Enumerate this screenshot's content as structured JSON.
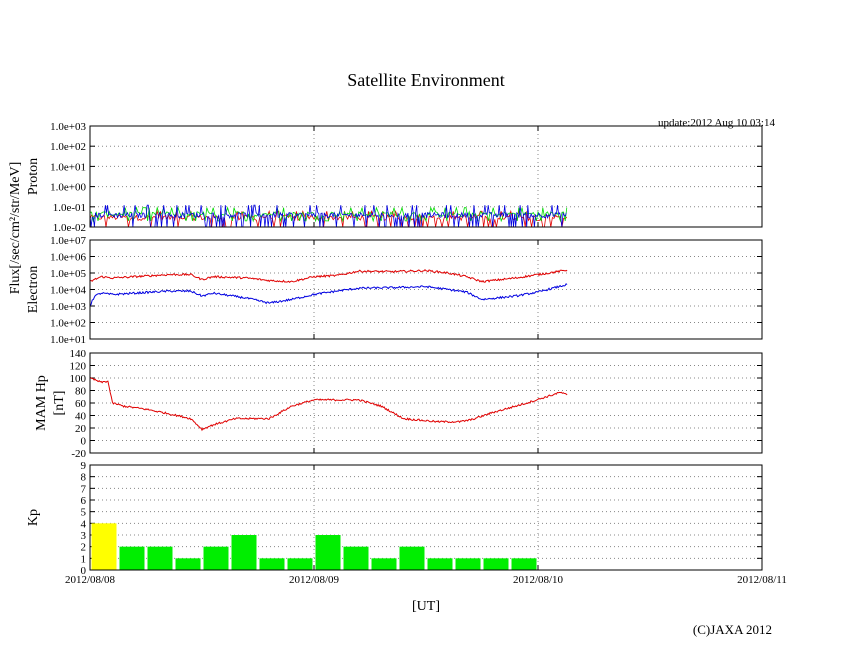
{
  "title": "Satellite Environment",
  "update_label": "update:2012 Aug 10 03:14",
  "copyright": "(C)JAXA 2012",
  "x_label": "[UT]",
  "x_ticks": [
    "2012/08/08",
    "2012/08/09",
    "2012/08/10",
    "2012/08/11"
  ],
  "y_shared_label": "Flux[/sec/cm²/str/MeV]",
  "colors": {
    "red": "#e00000",
    "blue": "#0000e0",
    "green": "#00dd00",
    "yellow": "#ffff00",
    "bar_green": "#00ee00"
  },
  "chart_data": [
    {
      "type": "line",
      "panel": "proton",
      "ylabel": "Proton",
      "yscale": "log",
      "ylim": [
        0.01,
        1000
      ],
      "yticks": [
        "1.0e-02",
        "1.0e-01",
        "1.0e+00",
        "1.0e+01",
        "1.0e+02",
        "1.0e+03"
      ],
      "xlim_days": [
        0,
        3
      ],
      "data_end_day": 2.13,
      "series_levels": [
        {
          "color": "red",
          "typical": 0.03,
          "min": 0.01,
          "max": 0.06
        },
        {
          "color": "green",
          "typical": 0.045,
          "min": 0.02,
          "max": 0.09
        },
        {
          "color": "blue",
          "typical": 0.04,
          "min": 0.01,
          "max": 0.12
        }
      ],
      "grid": true
    },
    {
      "type": "line",
      "panel": "electron",
      "ylabel": "Electron",
      "yscale": "log",
      "ylim": [
        10,
        10000000
      ],
      "yticks": [
        "1.0e+01",
        "1.0e+02",
        "1.0e+03",
        "1.0e+04",
        "1.0e+05",
        "1.0e+06",
        "1.0e+07"
      ],
      "series": [
        {
          "color": "red",
          "x": [
            0.0,
            0.02,
            0.05,
            0.1,
            0.2,
            0.35,
            0.45,
            0.5,
            0.55,
            0.7,
            0.8,
            0.9,
            1.0,
            1.1,
            1.2,
            1.35,
            1.5,
            1.6,
            1.68,
            1.75,
            1.9,
            2.0,
            2.13
          ],
          "y": [
            30000,
            40000,
            60000,
            50000,
            60000,
            80000,
            80000,
            40000,
            60000,
            50000,
            35000,
            30000,
            60000,
            70000,
            130000,
            120000,
            140000,
            100000,
            60000,
            30000,
            50000,
            80000,
            150000
          ]
        },
        {
          "color": "blue",
          "x": [
            0.0,
            0.02,
            0.05,
            0.1,
            0.2,
            0.35,
            0.45,
            0.5,
            0.55,
            0.7,
            0.8,
            0.9,
            1.0,
            1.1,
            1.2,
            1.35,
            1.5,
            1.6,
            1.68,
            1.75,
            1.9,
            2.0,
            2.13
          ],
          "y": [
            1000,
            4000,
            6000,
            5000,
            6000,
            8000,
            8000,
            4000,
            6000,
            3000,
            1500,
            2500,
            5000,
            8000,
            12000,
            13000,
            15000,
            10000,
            7000,
            2500,
            4000,
            7000,
            20000
          ]
        }
      ],
      "grid": true
    },
    {
      "type": "line",
      "panel": "mam_hp",
      "ylabel": "MAM Hp",
      "ylabel2": "[nT]",
      "ylim": [
        -20,
        140
      ],
      "yticks": [
        "-20",
        "0",
        "20",
        "40",
        "60",
        "80",
        "100",
        "120",
        "140"
      ],
      "series": [
        {
          "color": "red",
          "x": [
            0.0,
            0.05,
            0.08,
            0.1,
            0.15,
            0.25,
            0.35,
            0.45,
            0.5,
            0.55,
            0.65,
            0.8,
            0.9,
            1.0,
            1.1,
            1.2,
            1.3,
            1.4,
            1.55,
            1.65,
            1.7,
            1.8,
            1.95,
            2.1,
            2.13
          ],
          "y": [
            100,
            93,
            95,
            60,
            55,
            50,
            43,
            35,
            18,
            25,
            35,
            35,
            55,
            65,
            65,
            65,
            55,
            35,
            30,
            30,
            33,
            45,
            60,
            77,
            73
          ]
        }
      ],
      "grid": true
    },
    {
      "type": "bar",
      "panel": "kp",
      "ylabel": "Kp",
      "ylim": [
        0,
        9
      ],
      "yticks": [
        "0",
        "1",
        "2",
        "3",
        "4",
        "5",
        "6",
        "7",
        "8",
        "9"
      ],
      "bar_width_days": 0.125,
      "values": [
        4,
        2,
        2,
        1,
        2,
        3,
        1,
        1,
        3,
        2,
        1,
        2,
        1,
        1,
        1,
        1
      ],
      "bar_colors": [
        "yellow",
        "green",
        "green",
        "green",
        "green",
        "green",
        "green",
        "green",
        "green",
        "green",
        "green",
        "green",
        "green",
        "green",
        "green",
        "green"
      ],
      "grid": true
    }
  ]
}
